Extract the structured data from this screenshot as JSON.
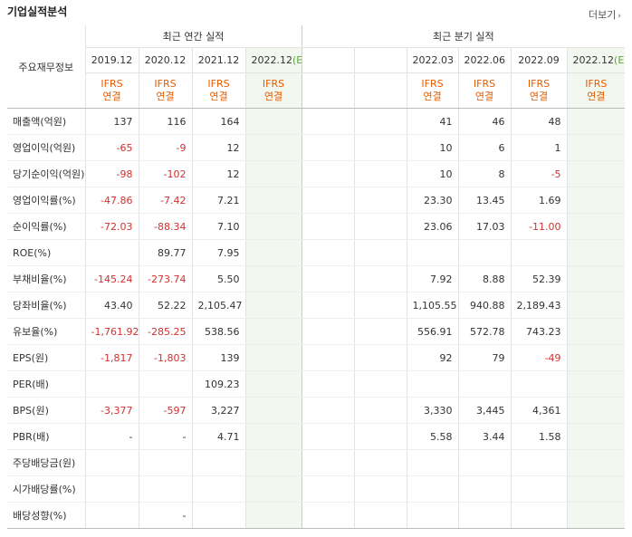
{
  "title": "기업실적분석",
  "more_label": "더보기",
  "header": {
    "main": "주요재무정보",
    "annual": "최근 연간 실적",
    "quarterly": "최근 분기 실적",
    "annual_periods": [
      "2019.12",
      "2020.12",
      "2021.12",
      "2022.12"
    ],
    "quarter_periods": [
      "",
      "",
      "2022.03",
      "2022.06",
      "2022.09",
      "2022.12"
    ],
    "estimate_suffix": "(E)",
    "ifrs": "IFRS",
    "consolidated": "연결"
  },
  "rows": [
    {
      "label": "매출액(억원)",
      "a": [
        "137",
        "116",
        "164",
        ""
      ],
      "q": [
        "",
        "",
        "41",
        "46",
        "48",
        ""
      ]
    },
    {
      "label": "영업이익(억원)",
      "a": [
        "-65",
        "-9",
        "12",
        ""
      ],
      "q": [
        "",
        "",
        "10",
        "6",
        "1",
        ""
      ]
    },
    {
      "label": "당기순이익(억원)",
      "a": [
        "-98",
        "-102",
        "12",
        ""
      ],
      "q": [
        "",
        "",
        "10",
        "8",
        "-5",
        ""
      ]
    },
    {
      "label": "영업이익률(%)",
      "a": [
        "-47.86",
        "-7.42",
        "7.21",
        ""
      ],
      "q": [
        "",
        "",
        "23.30",
        "13.45",
        "1.69",
        ""
      ]
    },
    {
      "label": "순이익률(%)",
      "a": [
        "-72.03",
        "-88.34",
        "7.10",
        ""
      ],
      "q": [
        "",
        "",
        "23.06",
        "17.03",
        "-11.00",
        ""
      ]
    },
    {
      "label": "ROE(%)",
      "a": [
        "",
        "89.77",
        "7.95",
        ""
      ],
      "q": [
        "",
        "",
        "",
        "",
        "",
        ""
      ]
    },
    {
      "label": "부채비율(%)",
      "a": [
        "-145.24",
        "-273.74",
        "5.50",
        ""
      ],
      "q": [
        "",
        "",
        "7.92",
        "8.88",
        "52.39",
        ""
      ]
    },
    {
      "label": "당좌비율(%)",
      "a": [
        "43.40",
        "52.22",
        "2,105.47",
        ""
      ],
      "q": [
        "",
        "",
        "1,105.55",
        "940.88",
        "2,189.43",
        ""
      ]
    },
    {
      "label": "유보율(%)",
      "a": [
        "-1,761.92",
        "-285.25",
        "538.56",
        ""
      ],
      "q": [
        "",
        "",
        "556.91",
        "572.78",
        "743.23",
        ""
      ]
    },
    {
      "label": "EPS(원)",
      "a": [
        "-1,817",
        "-1,803",
        "139",
        ""
      ],
      "q": [
        "",
        "",
        "92",
        "79",
        "-49",
        ""
      ]
    },
    {
      "label": "PER(배)",
      "a": [
        "",
        "",
        "109.23",
        ""
      ],
      "q": [
        "",
        "",
        "",
        "",
        "",
        ""
      ]
    },
    {
      "label": "BPS(원)",
      "a": [
        "-3,377",
        "-597",
        "3,227",
        ""
      ],
      "q": [
        "",
        "",
        "3,330",
        "3,445",
        "4,361",
        ""
      ]
    },
    {
      "label": "PBR(배)",
      "a": [
        "-",
        "-",
        "4.71",
        ""
      ],
      "q": [
        "",
        "",
        "5.58",
        "3.44",
        "1.58",
        ""
      ]
    },
    {
      "label": "주당배당금(원)",
      "a": [
        "",
        "",
        "",
        ""
      ],
      "q": [
        "",
        "",
        "",
        "",
        "",
        ""
      ]
    },
    {
      "label": "시가배당률(%)",
      "a": [
        "",
        "",
        "",
        ""
      ],
      "q": [
        "",
        "",
        "",
        "",
        "",
        ""
      ]
    },
    {
      "label": "배당성향(%)",
      "a": [
        "",
        "-",
        "",
        ""
      ],
      "q": [
        "",
        "",
        "",
        "",
        "",
        ""
      ]
    }
  ]
}
